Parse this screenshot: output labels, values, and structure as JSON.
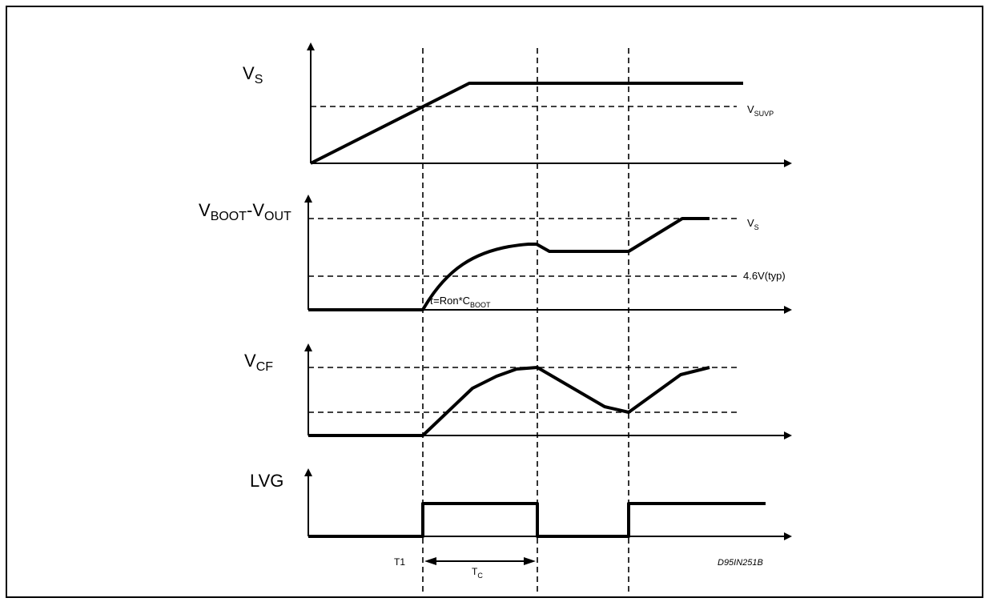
{
  "diagram": {
    "signals": [
      {
        "label": "V",
        "sub": "S"
      },
      {
        "label": "V",
        "sub": "BOOT",
        "label2": "-V",
        "sub2": "OUT"
      },
      {
        "label": "V",
        "sub": "CF"
      },
      {
        "label": "LVG",
        "sub": ""
      }
    ],
    "levels": {
      "vsuvp": {
        "label": "V",
        "sub": "SUVP"
      },
      "vs": {
        "label": "V",
        "sub": "S"
      },
      "typ": {
        "label": "4.6V(typ)"
      }
    },
    "tau": {
      "prefix": "τ=Ron*C",
      "sub": "BOOT"
    },
    "markers": {
      "t1": "T1",
      "tc": "T",
      "tc_sub": "C"
    },
    "figure_id": "D95IN251B"
  }
}
